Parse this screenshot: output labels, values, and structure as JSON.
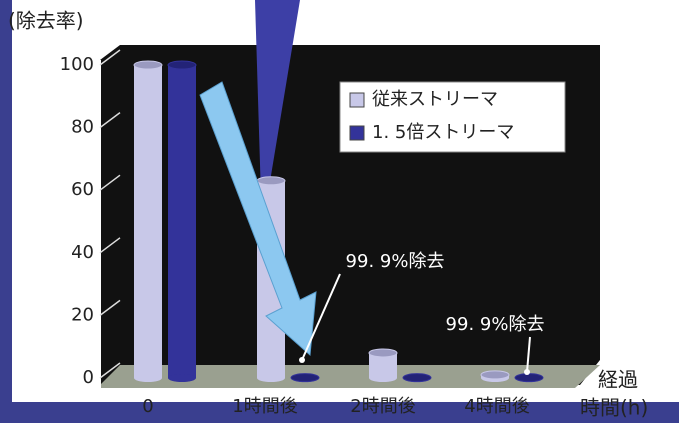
{
  "chart_data": {
    "type": "bar3d",
    "y_label": "(除去率)",
    "x_label_lines": [
      "経過",
      "時間(h)"
    ],
    "categories": [
      "0",
      "1時間後",
      "2時間後",
      "4時間後"
    ],
    "series": [
      {
        "name": "従来ストリーマ",
        "color": "#c8c8e8",
        "values": [
          100,
          63,
          8,
          1
        ]
      },
      {
        "name": "1. 5倍ストリーマ",
        "color": "#33339a",
        "values": [
          100,
          0.1,
          0.1,
          0.1
        ]
      }
    ],
    "ylim": [
      0,
      100
    ],
    "yticks": [
      0,
      20,
      40,
      60,
      80,
      100
    ],
    "grid": true,
    "legend": "upper right",
    "annotations": [
      {
        "text": "99. 9%除去",
        "category": 1
      },
      {
        "text": "99. 9%除去",
        "category": 3
      }
    ]
  }
}
